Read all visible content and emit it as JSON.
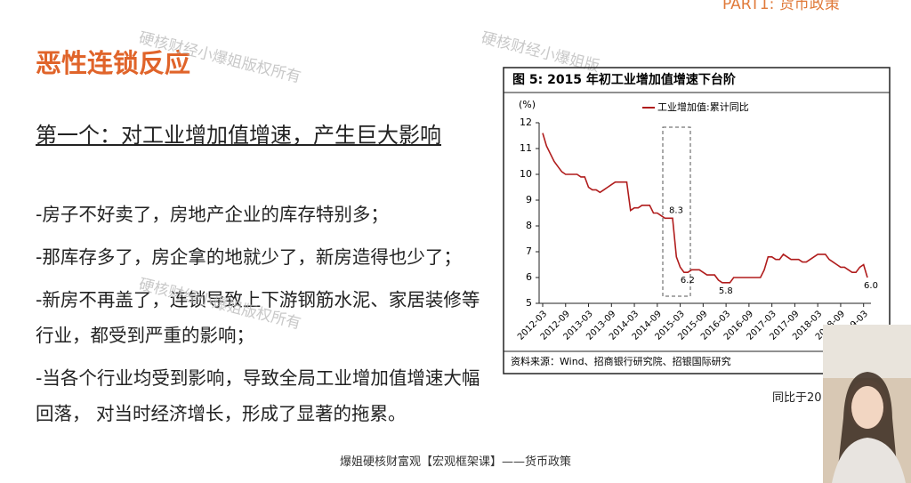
{
  "slide": {
    "corner_tag": "PART1: 货币政策",
    "title": "恶性连锁反应",
    "subtitle": "第一个：对工业增加值增速，产生巨大影响",
    "bullets": [
      "-房子不好卖了，房地产企业的库存特别多；",
      "-那库存多了，房企拿的地就少了，新房造得也少了；",
      "-新房不再盖了，连锁导致上下游钢筋水泥、家居装修等行业，都受到严重的影响；",
      "-当各个行业均受到影响，导致全局工业增加值增速大幅回落， 对当时经济增长，形成了显著的拖累。"
    ],
    "watermarks": [
      "硬核财经小爆姐版权所有",
      "硬核财经小爆姐版",
      "硬核财经小爆姐版权所有"
    ],
    "side_note": "同比于20",
    "footer": "爆姐硬核财富观【宏观框架课】——货币政策"
  },
  "chart_data": {
    "type": "line",
    "title": "图 5: 2015 年初工业增加值增速下台阶",
    "ylabel": "(%)",
    "source": "资料来源：Wind、招商银行研究院、招银国际研究",
    "ylim": [
      5,
      12
    ],
    "yticks": [
      5,
      6,
      7,
      8,
      9,
      10,
      11,
      12
    ],
    "categories": [
      "2012-03",
      null,
      null,
      null,
      null,
      null,
      "2012-09",
      null,
      null,
      null,
      null,
      null,
      "2013-03",
      null,
      null,
      null,
      null,
      null,
      "2013-09",
      null,
      null,
      null,
      null,
      null,
      "2014-03",
      null,
      null,
      null,
      null,
      null,
      "2014-09",
      null,
      null,
      null,
      null,
      null,
      "2015-03",
      null,
      null,
      null,
      null,
      null,
      "2015-09",
      null,
      null,
      null,
      null,
      null,
      "2016-03",
      null,
      null,
      null,
      null,
      null,
      "2016-09",
      null,
      null,
      null,
      null,
      null,
      "2017-03",
      null,
      null,
      null,
      null,
      null,
      "2017-09",
      null,
      null,
      null,
      null,
      null,
      "2018-03",
      null,
      null,
      null,
      null,
      null,
      "2018-09",
      null,
      null,
      null,
      null,
      null,
      "2019-03",
      null
    ],
    "series": [
      {
        "name": "工业增加值:累计同比",
        "color": "#b01c1c",
        "values": [
          11.6,
          11.1,
          10.8,
          10.5,
          10.3,
          10.1,
          10.0,
          10.0,
          10.0,
          10.0,
          9.9,
          9.9,
          9.5,
          9.4,
          9.4,
          9.3,
          9.4,
          9.5,
          9.6,
          9.7,
          9.7,
          9.7,
          9.7,
          8.6,
          8.7,
          8.7,
          8.8,
          8.8,
          8.8,
          8.5,
          8.5,
          8.4,
          8.3,
          8.3,
          8.3,
          6.8,
          6.4,
          6.2,
          6.2,
          6.3,
          6.3,
          6.3,
          6.2,
          6.1,
          6.1,
          6.1,
          5.9,
          5.8,
          5.8,
          5.8,
          6.0,
          6.0,
          6.0,
          6.0,
          6.0,
          6.0,
          6.0,
          6.0,
          6.3,
          6.8,
          6.8,
          6.7,
          6.7,
          6.9,
          6.8,
          6.7,
          6.7,
          6.7,
          6.6,
          6.6,
          6.7,
          6.8,
          6.9,
          6.9,
          6.9,
          6.7,
          6.6,
          6.5,
          6.4,
          6.4,
          6.3,
          6.2,
          6.2,
          6.4,
          6.5,
          6.0
        ],
        "value_labels": [
          null,
          null,
          null,
          null,
          null,
          null,
          null,
          null,
          null,
          null,
          null,
          null,
          null,
          null,
          null,
          null,
          null,
          null,
          null,
          null,
          null,
          null,
          null,
          null,
          null,
          null,
          null,
          null,
          null,
          null,
          null,
          null,
          null,
          null,
          "8.3",
          null,
          null,
          "6.2",
          null,
          null,
          null,
          null,
          null,
          null,
          null,
          null,
          null,
          "5.8",
          null,
          null,
          null,
          null,
          null,
          null,
          null,
          null,
          null,
          null,
          null,
          null,
          null,
          null,
          null,
          null,
          null,
          null,
          null,
          null,
          null,
          null,
          null,
          null,
          null,
          null,
          null,
          null,
          null,
          null,
          null,
          null,
          null,
          null,
          null,
          null,
          null,
          "6.0"
        ]
      }
    ]
  }
}
